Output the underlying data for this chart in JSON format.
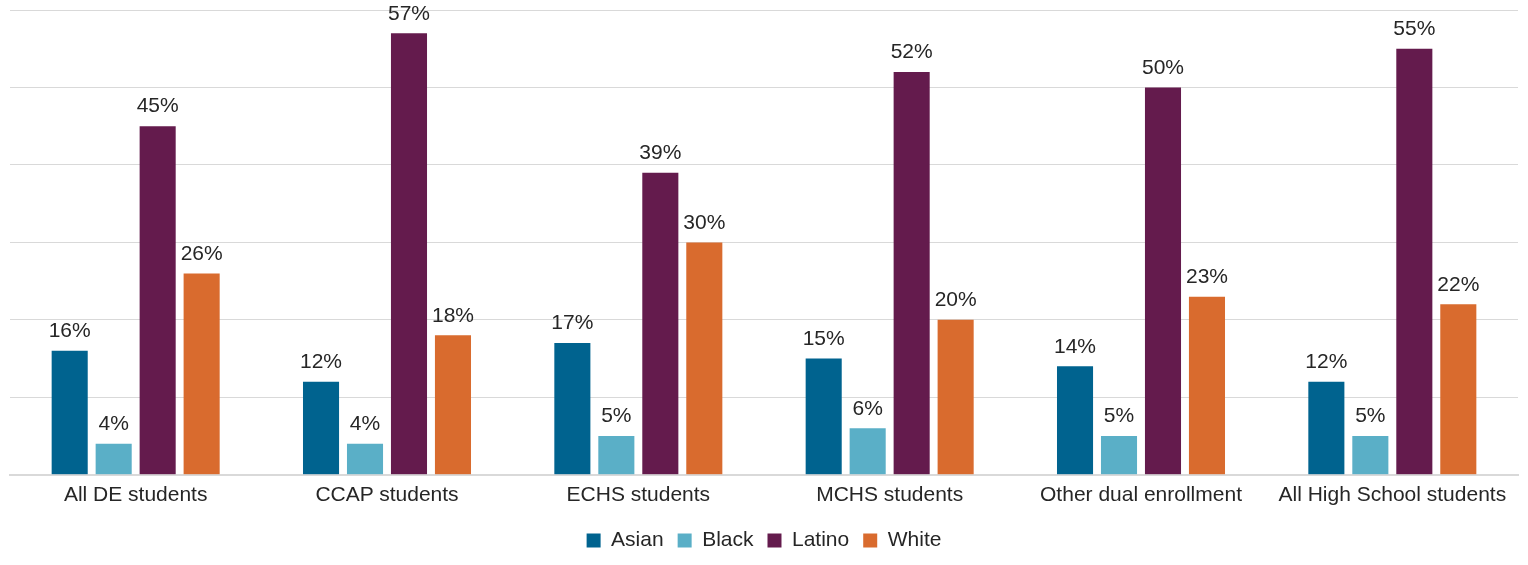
{
  "chart_data": {
    "type": "bar",
    "categories": [
      "All DE students",
      "CCAP students",
      "ECHS students",
      "MCHS students",
      "Other dual enrollment",
      "All High School students"
    ],
    "series": [
      {
        "name": "Asian",
        "color": "#00638f",
        "values": [
          16,
          12,
          17,
          15,
          14,
          12
        ],
        "value_labels": [
          "16%",
          "12%",
          "17%",
          "15%",
          "14%",
          "12%"
        ]
      },
      {
        "name": "Black",
        "color": "#5aafc7",
        "values": [
          4,
          4,
          5,
          6,
          5,
          5
        ],
        "value_labels": [
          "4%",
          "4%",
          "5%",
          "6%",
          "5%",
          "5%"
        ]
      },
      {
        "name": "Latino",
        "color": "#641b4d",
        "values": [
          45,
          57,
          39,
          52,
          50,
          55
        ],
        "value_labels": [
          "45%",
          "57%",
          "39%",
          "52%",
          "50%",
          "55%"
        ]
      },
      {
        "name": "White",
        "color": "#d96b2e",
        "values": [
          26,
          18,
          30,
          20,
          23,
          22
        ],
        "value_labels": [
          "26%",
          "18%",
          "30%",
          "20%",
          "23%",
          "22%"
        ]
      }
    ],
    "ylim": [
      0,
      60
    ],
    "yticks": [
      0,
      10,
      20,
      30,
      40,
      50,
      60
    ],
    "tick_labels": "x",
    "grid": "y",
    "legend": "bottom"
  }
}
